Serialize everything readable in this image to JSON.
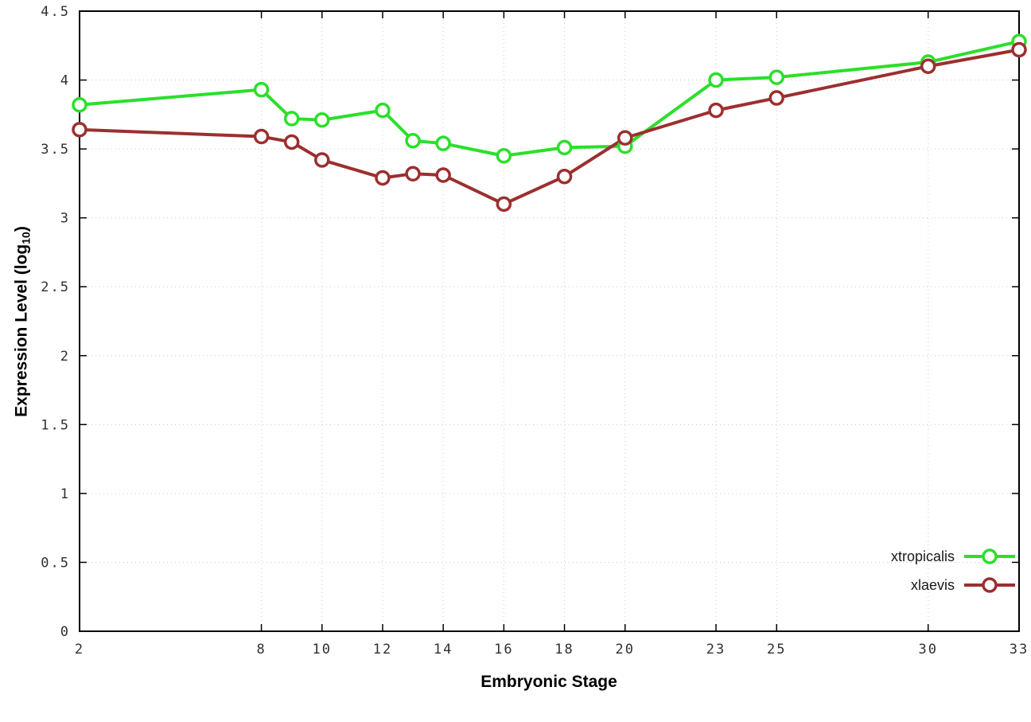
{
  "chart_data": {
    "type": "line",
    "x": [
      2,
      8,
      9,
      10,
      12,
      13,
      14,
      16,
      18,
      20,
      23,
      25,
      30,
      33
    ],
    "series": [
      {
        "name": "xtropicalis",
        "color": "#2bdf2b",
        "values": [
          3.82,
          3.93,
          3.72,
          3.71,
          3.78,
          3.56,
          3.54,
          3.45,
          3.51,
          3.52,
          4.0,
          4.02,
          4.13,
          4.28
        ]
      },
      {
        "name": "xlaevis",
        "color": "#9c2f2f",
        "values": [
          3.64,
          3.59,
          3.55,
          3.42,
          3.29,
          3.32,
          3.31,
          3.1,
          3.3,
          3.58,
          3.78,
          3.87,
          4.1,
          4.22
        ]
      }
    ],
    "title": "",
    "xlabel": "Embryonic Stage",
    "ylabel_main": "Expression Level (log",
    "ylabel_sub": "10",
    "ylabel_close": ")",
    "xlim": [
      2,
      33
    ],
    "ylim": [
      0,
      4.5
    ],
    "xticks": [
      2,
      8,
      10,
      12,
      14,
      16,
      18,
      20,
      23,
      25,
      30,
      33
    ],
    "yticks": [
      0,
      0.5,
      1,
      1.5,
      2,
      2.5,
      3,
      3.5,
      4,
      4.5
    ],
    "grid": true,
    "legend_position": "bottom-right",
    "tick_color": "#303030",
    "grid_color": "#cccccc",
    "border_color": "#000000"
  }
}
